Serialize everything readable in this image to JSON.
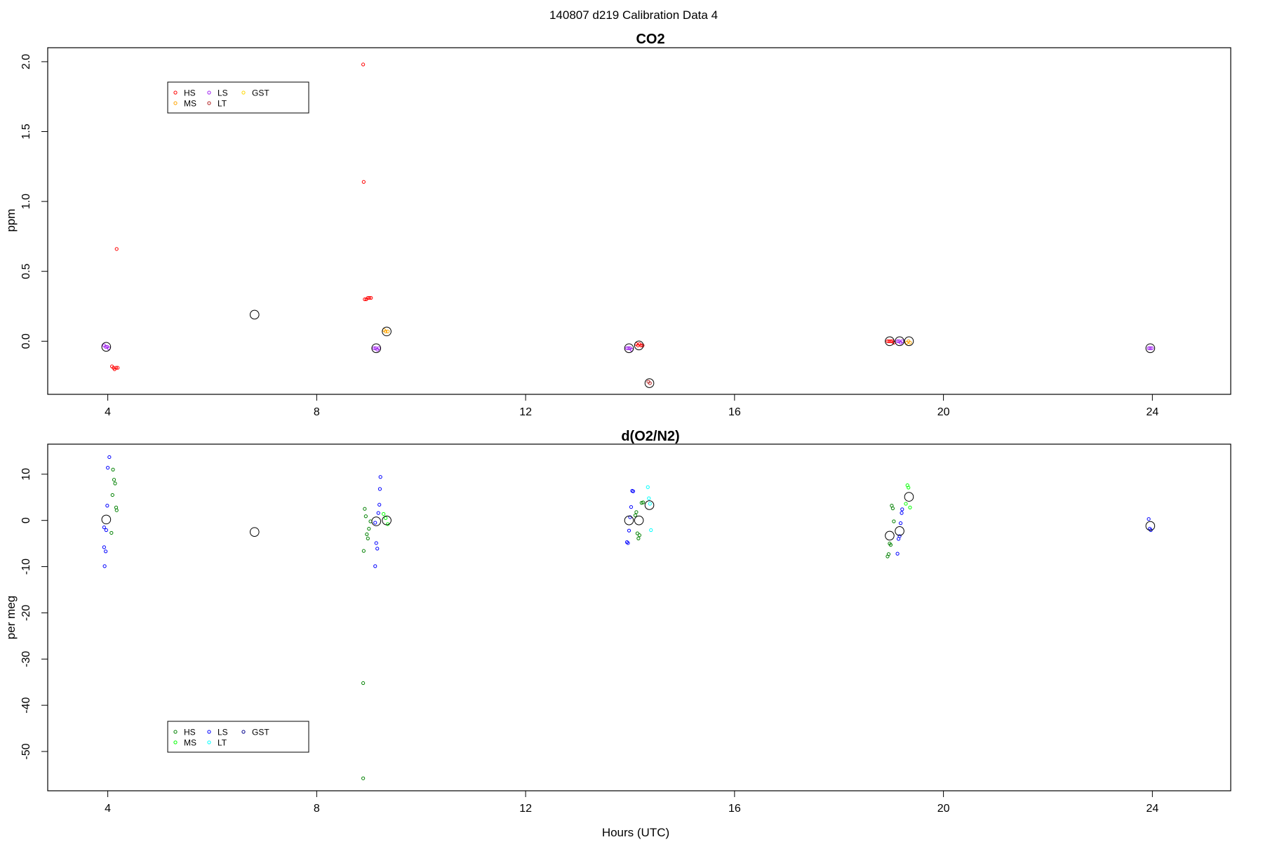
{
  "page_title": "140807   d219   Calibration Data 4",
  "chart_data": [
    {
      "type": "scatter",
      "title": "CO2",
      "xlabel": "",
      "ylabel": "ppm",
      "xlim": [
        2.85,
        25.5
      ],
      "ylim": [
        -0.38,
        2.1
      ],
      "xticks": [
        4,
        8,
        12,
        16,
        20,
        24
      ],
      "yticks": [
        0.0,
        0.5,
        1.0,
        1.5,
        2.0
      ],
      "ytick_labels": [
        "0.0",
        "0.5",
        "1.0",
        "1.5",
        "2.0"
      ],
      "legend": {
        "placement": "top-left",
        "entries": [
          {
            "label": "HS",
            "color": "#ff0000"
          },
          {
            "label": "MS",
            "color": "#ffa500"
          },
          {
            "label": "LS",
            "color": "#a020f0"
          },
          {
            "label": "LT",
            "color": "#b22222"
          },
          {
            "label": "GST",
            "color": "#ffd700"
          }
        ]
      },
      "means": [
        {
          "x": 3.97,
          "y": -0.04
        },
        {
          "x": 6.81,
          "y": 0.19
        },
        {
          "x": 9.14,
          "y": -0.05
        },
        {
          "x": 9.34,
          "y": 0.07
        },
        {
          "x": 13.98,
          "y": -0.05
        },
        {
          "x": 14.17,
          "y": -0.03
        },
        {
          "x": 14.37,
          "y": -0.3
        },
        {
          "x": 18.97,
          "y": 0.0
        },
        {
          "x": 19.16,
          "y": 0.0
        },
        {
          "x": 19.34,
          "y": 0.0
        },
        {
          "x": 23.96,
          "y": -0.05
        }
      ],
      "series": [
        {
          "name": "HS",
          "color": "#ff0000",
          "points": [
            [
              4.17,
              0.66
            ],
            [
              4.08,
              -0.18
            ],
            [
              4.11,
              -0.19
            ],
            [
              4.13,
              -0.2
            ],
            [
              4.16,
              -0.19
            ],
            [
              4.19,
              -0.19
            ],
            [
              8.89,
              1.98
            ],
            [
              8.9,
              1.14
            ],
            [
              8.92,
              0.3
            ],
            [
              8.95,
              0.3
            ],
            [
              8.98,
              0.31
            ],
            [
              9.01,
              0.31
            ],
            [
              9.04,
              0.31
            ],
            [
              14.12,
              -0.02
            ],
            [
              14.15,
              -0.03
            ],
            [
              14.18,
              -0.02
            ],
            [
              14.21,
              -0.03
            ],
            [
              14.24,
              -0.03
            ],
            [
              18.93,
              0.0
            ],
            [
              18.96,
              0.0
            ],
            [
              18.99,
              0.0
            ],
            [
              19.02,
              0.0
            ],
            [
              19.05,
              -0.01
            ]
          ]
        },
        {
          "name": "MS",
          "color": "#ffa500",
          "points": [
            [
              9.29,
              0.08
            ],
            [
              9.32,
              0.07
            ],
            [
              9.36,
              0.07
            ],
            [
              19.3,
              -0.01
            ],
            [
              19.33,
              0.0
            ],
            [
              19.36,
              -0.01
            ]
          ]
        },
        {
          "name": "LS",
          "color": "#a020f0",
          "points": [
            [
              3.93,
              -0.03
            ],
            [
              3.96,
              -0.04
            ],
            [
              3.99,
              -0.04
            ],
            [
              4.02,
              -0.05
            ],
            [
              9.1,
              -0.05
            ],
            [
              9.13,
              -0.05
            ],
            [
              9.16,
              -0.06
            ],
            [
              9.19,
              -0.05
            ],
            [
              13.94,
              -0.05
            ],
            [
              13.97,
              -0.05
            ],
            [
              14.0,
              -0.05
            ],
            [
              14.03,
              -0.06
            ],
            [
              19.12,
              0.0
            ],
            [
              19.15,
              0.0
            ],
            [
              19.18,
              -0.01
            ],
            [
              19.21,
              0.0
            ],
            [
              23.93,
              -0.05
            ],
            [
              23.96,
              -0.05
            ],
            [
              23.99,
              -0.05
            ]
          ]
        },
        {
          "name": "LT",
          "color": "#b22222",
          "points": [
            [
              14.35,
              -0.29
            ],
            [
              14.38,
              -0.3
            ]
          ]
        },
        {
          "name": "GST",
          "color": "#ffd700",
          "points": []
        }
      ]
    },
    {
      "type": "scatter",
      "title": "d(O2/N2)",
      "xlabel": "Hours (UTC)",
      "ylabel": "per meg",
      "xlim": [
        2.85,
        25.5
      ],
      "ylim": [
        -58.5,
        16.5
      ],
      "xticks": [
        4,
        8,
        12,
        16,
        20,
        24
      ],
      "yticks": [
        -50,
        -40,
        -30,
        -20,
        -10,
        0,
        10
      ],
      "ytick_labels": [
        "-50",
        "-40",
        "-30",
        "-20",
        "-10",
        "0",
        "10"
      ],
      "legend": {
        "placement": "bottom-left",
        "entries": [
          {
            "label": "HS",
            "color": "#008000"
          },
          {
            "label": "MS",
            "color": "#00ff00"
          },
          {
            "label": "LS",
            "color": "#0000ff"
          },
          {
            "label": "LT",
            "color": "#00ffff"
          },
          {
            "label": "GST",
            "color": "#00008b"
          }
        ]
      },
      "means": [
        {
          "x": 3.97,
          "y": 0.2
        },
        {
          "x": 6.81,
          "y": -2.5
        },
        {
          "x": 9.14,
          "y": -0.2
        },
        {
          "x": 9.34,
          "y": 0.0
        },
        {
          "x": 13.98,
          "y": 0.0
        },
        {
          "x": 14.17,
          "y": 0.0
        },
        {
          "x": 14.37,
          "y": 3.3
        },
        {
          "x": 18.97,
          "y": -3.3
        },
        {
          "x": 19.16,
          "y": -2.3
        },
        {
          "x": 19.34,
          "y": 5.1
        },
        {
          "x": 23.96,
          "y": -1.2
        }
      ],
      "series": [
        {
          "name": "HS",
          "color": "#008000",
          "points": [
            [
              4.1,
              11.0
            ],
            [
              4.12,
              8.8
            ],
            [
              4.14,
              8.0
            ],
            [
              4.09,
              5.5
            ],
            [
              4.16,
              2.8
            ],
            [
              4.17,
              2.2
            ],
            [
              4.07,
              -2.7
            ],
            [
              8.89,
              -35.2
            ],
            [
              8.89,
              -55.8
            ],
            [
              8.92,
              2.5
            ],
            [
              8.94,
              0.9
            ],
            [
              8.96,
              -3.0
            ],
            [
              8.98,
              -3.9
            ],
            [
              8.9,
              -6.6
            ],
            [
              9.0,
              -1.8
            ],
            [
              9.03,
              -0.2
            ],
            [
              14.1,
              1.1
            ],
            [
              14.12,
              1.8
            ],
            [
              14.14,
              -2.8
            ],
            [
              14.16,
              -3.9
            ],
            [
              14.18,
              -3.2
            ],
            [
              14.22,
              3.8
            ],
            [
              14.25,
              3.9
            ],
            [
              18.93,
              -7.8
            ],
            [
              18.95,
              -7.3
            ],
            [
              18.97,
              -5.0
            ],
            [
              18.99,
              -5.3
            ],
            [
              19.01,
              3.2
            ],
            [
              19.03,
              2.6
            ],
            [
              19.05,
              -0.2
            ]
          ]
        },
        {
          "name": "MS",
          "color": "#00ff00",
          "points": [
            [
              9.28,
              1.4
            ],
            [
              9.32,
              0.5
            ],
            [
              9.36,
              -0.8
            ],
            [
              19.28,
              3.6
            ],
            [
              19.31,
              7.6
            ],
            [
              19.33,
              7.1
            ],
            [
              19.36,
              2.8
            ]
          ]
        },
        {
          "name": "LS",
          "color": "#0000ff",
          "points": [
            [
              4.03,
              13.7
            ],
            [
              4.0,
              11.4
            ],
            [
              3.99,
              3.2
            ],
            [
              3.93,
              -1.5
            ],
            [
              3.97,
              -2.1
            ],
            [
              3.93,
              -5.8
            ],
            [
              3.96,
              -6.7
            ],
            [
              3.94,
              -9.9
            ],
            [
              9.12,
              -0.5
            ],
            [
              9.14,
              -4.9
            ],
            [
              9.16,
              -6.1
            ],
            [
              9.12,
              -9.9
            ],
            [
              9.18,
              1.6
            ],
            [
              9.2,
              3.4
            ],
            [
              9.21,
              6.8
            ],
            [
              9.22,
              9.4
            ],
            [
              13.94,
              -4.7
            ],
            [
              13.96,
              -4.9
            ],
            [
              13.98,
              -2.2
            ],
            [
              14.0,
              0.7
            ],
            [
              14.02,
              2.9
            ],
            [
              14.04,
              6.4
            ],
            [
              14.06,
              6.3
            ],
            [
              19.12,
              -7.2
            ],
            [
              19.14,
              -4.0
            ],
            [
              19.16,
              -3.4
            ],
            [
              19.18,
              -0.6
            ],
            [
              19.2,
              1.6
            ],
            [
              19.21,
              2.4
            ],
            [
              23.93,
              0.3
            ],
            [
              23.95,
              -1.8
            ],
            [
              23.97,
              -2.1
            ]
          ]
        },
        {
          "name": "LT",
          "color": "#00ffff",
          "points": [
            [
              14.34,
              7.2
            ],
            [
              14.36,
              4.8
            ],
            [
              14.38,
              3.6
            ],
            [
              14.4,
              -2.1
            ]
          ]
        },
        {
          "name": "GST",
          "color": "#00008b",
          "points": []
        }
      ]
    }
  ]
}
